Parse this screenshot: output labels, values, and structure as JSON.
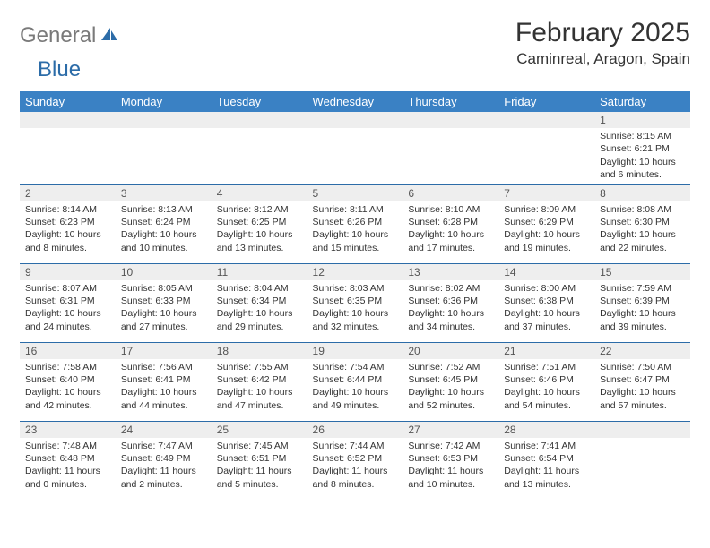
{
  "logo": {
    "general": "General",
    "blue": "Blue"
  },
  "title": "February 2025",
  "location": "Caminreal, Aragon, Spain",
  "colors": {
    "header_bg": "#3a81c4",
    "header_text": "#ffffff",
    "row_divider": "#2c6ca8",
    "daynum_bg": "#eeeeee",
    "text": "#333333",
    "logo_gray": "#7a7a7a",
    "logo_blue": "#2c6ca8"
  },
  "day_labels": [
    "Sunday",
    "Monday",
    "Tuesday",
    "Wednesday",
    "Thursday",
    "Friday",
    "Saturday"
  ],
  "weeks": [
    [
      null,
      null,
      null,
      null,
      null,
      null,
      {
        "n": "1",
        "sr": "Sunrise: 8:15 AM",
        "ss": "Sunset: 6:21 PM",
        "dl": "Daylight: 10 hours and 6 minutes."
      }
    ],
    [
      {
        "n": "2",
        "sr": "Sunrise: 8:14 AM",
        "ss": "Sunset: 6:23 PM",
        "dl": "Daylight: 10 hours and 8 minutes."
      },
      {
        "n": "3",
        "sr": "Sunrise: 8:13 AM",
        "ss": "Sunset: 6:24 PM",
        "dl": "Daylight: 10 hours and 10 minutes."
      },
      {
        "n": "4",
        "sr": "Sunrise: 8:12 AM",
        "ss": "Sunset: 6:25 PM",
        "dl": "Daylight: 10 hours and 13 minutes."
      },
      {
        "n": "5",
        "sr": "Sunrise: 8:11 AM",
        "ss": "Sunset: 6:26 PM",
        "dl": "Daylight: 10 hours and 15 minutes."
      },
      {
        "n": "6",
        "sr": "Sunrise: 8:10 AM",
        "ss": "Sunset: 6:28 PM",
        "dl": "Daylight: 10 hours and 17 minutes."
      },
      {
        "n": "7",
        "sr": "Sunrise: 8:09 AM",
        "ss": "Sunset: 6:29 PM",
        "dl": "Daylight: 10 hours and 19 minutes."
      },
      {
        "n": "8",
        "sr": "Sunrise: 8:08 AM",
        "ss": "Sunset: 6:30 PM",
        "dl": "Daylight: 10 hours and 22 minutes."
      }
    ],
    [
      {
        "n": "9",
        "sr": "Sunrise: 8:07 AM",
        "ss": "Sunset: 6:31 PM",
        "dl": "Daylight: 10 hours and 24 minutes."
      },
      {
        "n": "10",
        "sr": "Sunrise: 8:05 AM",
        "ss": "Sunset: 6:33 PM",
        "dl": "Daylight: 10 hours and 27 minutes."
      },
      {
        "n": "11",
        "sr": "Sunrise: 8:04 AM",
        "ss": "Sunset: 6:34 PM",
        "dl": "Daylight: 10 hours and 29 minutes."
      },
      {
        "n": "12",
        "sr": "Sunrise: 8:03 AM",
        "ss": "Sunset: 6:35 PM",
        "dl": "Daylight: 10 hours and 32 minutes."
      },
      {
        "n": "13",
        "sr": "Sunrise: 8:02 AM",
        "ss": "Sunset: 6:36 PM",
        "dl": "Daylight: 10 hours and 34 minutes."
      },
      {
        "n": "14",
        "sr": "Sunrise: 8:00 AM",
        "ss": "Sunset: 6:38 PM",
        "dl": "Daylight: 10 hours and 37 minutes."
      },
      {
        "n": "15",
        "sr": "Sunrise: 7:59 AM",
        "ss": "Sunset: 6:39 PM",
        "dl": "Daylight: 10 hours and 39 minutes."
      }
    ],
    [
      {
        "n": "16",
        "sr": "Sunrise: 7:58 AM",
        "ss": "Sunset: 6:40 PM",
        "dl": "Daylight: 10 hours and 42 minutes."
      },
      {
        "n": "17",
        "sr": "Sunrise: 7:56 AM",
        "ss": "Sunset: 6:41 PM",
        "dl": "Daylight: 10 hours and 44 minutes."
      },
      {
        "n": "18",
        "sr": "Sunrise: 7:55 AM",
        "ss": "Sunset: 6:42 PM",
        "dl": "Daylight: 10 hours and 47 minutes."
      },
      {
        "n": "19",
        "sr": "Sunrise: 7:54 AM",
        "ss": "Sunset: 6:44 PM",
        "dl": "Daylight: 10 hours and 49 minutes."
      },
      {
        "n": "20",
        "sr": "Sunrise: 7:52 AM",
        "ss": "Sunset: 6:45 PM",
        "dl": "Daylight: 10 hours and 52 minutes."
      },
      {
        "n": "21",
        "sr": "Sunrise: 7:51 AM",
        "ss": "Sunset: 6:46 PM",
        "dl": "Daylight: 10 hours and 54 minutes."
      },
      {
        "n": "22",
        "sr": "Sunrise: 7:50 AM",
        "ss": "Sunset: 6:47 PM",
        "dl": "Daylight: 10 hours and 57 minutes."
      }
    ],
    [
      {
        "n": "23",
        "sr": "Sunrise: 7:48 AM",
        "ss": "Sunset: 6:48 PM",
        "dl": "Daylight: 11 hours and 0 minutes."
      },
      {
        "n": "24",
        "sr": "Sunrise: 7:47 AM",
        "ss": "Sunset: 6:49 PM",
        "dl": "Daylight: 11 hours and 2 minutes."
      },
      {
        "n": "25",
        "sr": "Sunrise: 7:45 AM",
        "ss": "Sunset: 6:51 PM",
        "dl": "Daylight: 11 hours and 5 minutes."
      },
      {
        "n": "26",
        "sr": "Sunrise: 7:44 AM",
        "ss": "Sunset: 6:52 PM",
        "dl": "Daylight: 11 hours and 8 minutes."
      },
      {
        "n": "27",
        "sr": "Sunrise: 7:42 AM",
        "ss": "Sunset: 6:53 PM",
        "dl": "Daylight: 11 hours and 10 minutes."
      },
      {
        "n": "28",
        "sr": "Sunrise: 7:41 AM",
        "ss": "Sunset: 6:54 PM",
        "dl": "Daylight: 11 hours and 13 minutes."
      },
      null
    ]
  ]
}
